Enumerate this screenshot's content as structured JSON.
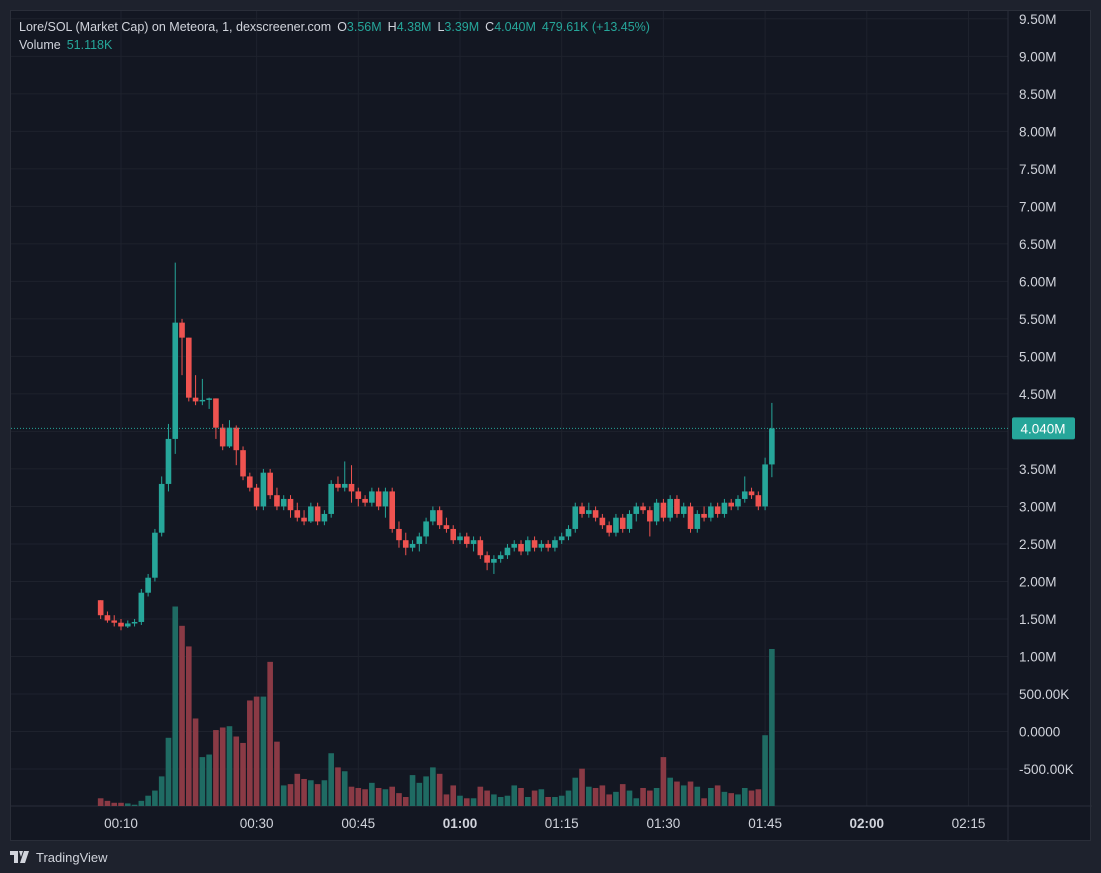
{
  "legend": {
    "symbol": "Lore/SOL (Market Cap) on Meteora, 1, dexscreener.com",
    "o_label": "O",
    "o_value": "3.56M",
    "h_label": "H",
    "h_value": "4.38M",
    "l_label": "L",
    "l_value": "3.39M",
    "c_label": "C",
    "c_value": "4.040M",
    "change": "479.61K (+13.45%)",
    "volume_label": "Volume",
    "volume_value": "51.118K"
  },
  "footer": {
    "brand": "TradingView"
  },
  "colors": {
    "up": "#26a69a",
    "down": "#ef5350",
    "up_vol": "#1f6b63",
    "down_vol": "#8a3a45",
    "background": "#131722",
    "grid": "#1e222d",
    "text": "#d1d4dc"
  },
  "chart_data": {
    "type": "candlestick",
    "price_axis": {
      "min": -1000000,
      "max": 9500000,
      "ticks": [
        9500000,
        9000000,
        8500000,
        8000000,
        7500000,
        7000000,
        6500000,
        6000000,
        5500000,
        5000000,
        4500000,
        4000000,
        3500000,
        3000000,
        2500000,
        2000000,
        1500000,
        1000000,
        500000,
        0,
        -500000
      ],
      "tick_labels": [
        "9.50M",
        "9.00M",
        "8.50M",
        "8.00M",
        "7.50M",
        "7.00M",
        "6.50M",
        "6.00M",
        "5.50M",
        "5.00M",
        "4.50M",
        "",
        "3.50M",
        "3.00M",
        "2.50M",
        "2.00M",
        "1.50M",
        "1.00M",
        "500.00K",
        "0.0000",
        "-500.00K"
      ]
    },
    "time_axis": {
      "labels": [
        {
          "minute": 10,
          "text": "00:10",
          "bold": false
        },
        {
          "minute": 30,
          "text": "00:30",
          "bold": false
        },
        {
          "minute": 45,
          "text": "00:45",
          "bold": false
        },
        {
          "minute": 60,
          "text": "01:00",
          "bold": true
        },
        {
          "minute": 75,
          "text": "01:15",
          "bold": false
        },
        {
          "minute": 90,
          "text": "01:30",
          "bold": false
        },
        {
          "minute": 105,
          "text": "01:45",
          "bold": false
        },
        {
          "minute": 120,
          "text": "02:00",
          "bold": true
        },
        {
          "minute": 135,
          "text": "02:15",
          "bold": false
        }
      ]
    },
    "last_price": {
      "value": 4040000,
      "label": "4.040M"
    },
    "start_minute": 7,
    "candles": [
      [
        1.75,
        1.75,
        1.5,
        1.55,
        60000
      ],
      [
        1.55,
        1.6,
        1.45,
        1.48,
        40000
      ],
      [
        1.48,
        1.55,
        1.4,
        1.45,
        25000
      ],
      [
        1.45,
        1.5,
        1.35,
        1.4,
        25000
      ],
      [
        1.4,
        1.48,
        1.38,
        1.44,
        20000
      ],
      [
        1.44,
        1.5,
        1.4,
        1.46,
        10000
      ],
      [
        1.46,
        1.9,
        1.42,
        1.85,
        40000
      ],
      [
        1.85,
        2.1,
        1.8,
        2.05,
        80000
      ],
      [
        2.05,
        2.7,
        2.0,
        2.65,
        120000
      ],
      [
        2.65,
        3.4,
        2.6,
        3.3,
        230000
      ],
      [
        3.3,
        4.1,
        3.2,
        3.9,
        530000
      ],
      [
        3.9,
        6.25,
        3.7,
        5.45,
        1550000
      ],
      [
        5.45,
        5.5,
        4.75,
        5.25,
        1400000
      ],
      [
        5.25,
        5.25,
        4.4,
        4.45,
        1240000
      ],
      [
        4.45,
        4.75,
        4.35,
        4.4,
        680000
      ],
      [
        4.4,
        4.7,
        4.35,
        4.42,
        380000
      ],
      [
        4.42,
        4.45,
        4.3,
        4.44,
        400000
      ],
      [
        4.44,
        4.44,
        3.9,
        4.05,
        590000
      ],
      [
        4.05,
        4.1,
        3.75,
        3.8,
        610000
      ],
      [
        3.8,
        4.15,
        3.78,
        4.05,
        620000
      ],
      [
        4.05,
        4.08,
        3.55,
        3.75,
        540000
      ],
      [
        3.75,
        3.8,
        3.35,
        3.4,
        490000
      ],
      [
        3.4,
        3.45,
        3.2,
        3.25,
        820000
      ],
      [
        3.25,
        3.3,
        2.95,
        3.0,
        850000
      ],
      [
        3.0,
        3.5,
        2.95,
        3.45,
        850000
      ],
      [
        3.45,
        3.5,
        3.1,
        3.15,
        1120000
      ],
      [
        3.15,
        3.25,
        2.95,
        3.0,
        500000
      ],
      [
        3.0,
        3.15,
        2.95,
        3.1,
        160000
      ],
      [
        3.1,
        3.15,
        2.85,
        2.95,
        170000
      ],
      [
        2.95,
        3.05,
        2.8,
        2.85,
        250000
      ],
      [
        2.85,
        2.95,
        2.75,
        2.8,
        210000
      ],
      [
        2.8,
        3.05,
        2.78,
        3.0,
        200000
      ],
      [
        3.0,
        3.05,
        2.75,
        2.8,
        170000
      ],
      [
        2.8,
        2.95,
        2.75,
        2.9,
        200000
      ],
      [
        2.9,
        3.35,
        2.85,
        3.3,
        410000
      ],
      [
        3.3,
        3.4,
        3.2,
        3.25,
        300000
      ],
      [
        3.25,
        3.6,
        3.2,
        3.3,
        270000
      ],
      [
        3.3,
        3.55,
        3.05,
        3.2,
        150000
      ],
      [
        3.2,
        3.25,
        3.0,
        3.1,
        140000
      ],
      [
        3.1,
        3.15,
        3.0,
        3.05,
        130000
      ],
      [
        3.05,
        3.25,
        3.0,
        3.2,
        180000
      ],
      [
        3.2,
        3.25,
        2.95,
        3.0,
        140000
      ],
      [
        3.0,
        3.25,
        2.85,
        3.2,
        130000
      ],
      [
        3.2,
        3.25,
        2.65,
        2.7,
        150000
      ],
      [
        2.7,
        2.8,
        2.45,
        2.55,
        100000
      ],
      [
        2.55,
        2.65,
        2.35,
        2.45,
        70000
      ],
      [
        2.45,
        2.55,
        2.4,
        2.5,
        240000
      ],
      [
        2.5,
        2.65,
        2.4,
        2.6,
        180000
      ],
      [
        2.6,
        2.85,
        2.5,
        2.8,
        230000
      ],
      [
        2.8,
        3.0,
        2.75,
        2.95,
        300000
      ],
      [
        2.95,
        3.0,
        2.7,
        2.75,
        250000
      ],
      [
        2.75,
        2.85,
        2.65,
        2.7,
        90000
      ],
      [
        2.7,
        2.75,
        2.5,
        2.55,
        160000
      ],
      [
        2.55,
        2.65,
        2.5,
        2.6,
        80000
      ],
      [
        2.6,
        2.65,
        2.45,
        2.5,
        60000
      ],
      [
        2.5,
        2.6,
        2.4,
        2.55,
        60000
      ],
      [
        2.55,
        2.6,
        2.3,
        2.35,
        150000
      ],
      [
        2.35,
        2.4,
        2.15,
        2.25,
        120000
      ],
      [
        2.25,
        2.35,
        2.1,
        2.3,
        90000
      ],
      [
        2.3,
        2.4,
        2.25,
        2.35,
        70000
      ],
      [
        2.35,
        2.5,
        2.3,
        2.45,
        80000
      ],
      [
        2.45,
        2.55,
        2.4,
        2.5,
        160000
      ],
      [
        2.5,
        2.55,
        2.35,
        2.4,
        140000
      ],
      [
        2.4,
        2.6,
        2.35,
        2.55,
        70000
      ],
      [
        2.55,
        2.6,
        2.4,
        2.45,
        120000
      ],
      [
        2.45,
        2.55,
        2.4,
        2.5,
        130000
      ],
      [
        2.5,
        2.55,
        2.4,
        2.45,
        70000
      ],
      [
        2.45,
        2.6,
        2.4,
        2.55,
        70000
      ],
      [
        2.55,
        2.65,
        2.5,
        2.6,
        80000
      ],
      [
        2.6,
        2.75,
        2.55,
        2.7,
        120000
      ],
      [
        2.7,
        3.05,
        2.65,
        3.0,
        220000
      ],
      [
        3.0,
        3.05,
        2.85,
        2.9,
        290000
      ],
      [
        2.9,
        3.05,
        2.85,
        2.95,
        150000
      ],
      [
        2.95,
        3.0,
        2.8,
        2.85,
        140000
      ],
      [
        2.85,
        2.9,
        2.7,
        2.75,
        160000
      ],
      [
        2.75,
        2.8,
        2.6,
        2.65,
        90000
      ],
      [
        2.65,
        2.9,
        2.6,
        2.85,
        110000
      ],
      [
        2.85,
        2.9,
        2.65,
        2.7,
        170000
      ],
      [
        2.7,
        2.95,
        2.65,
        2.9,
        120000
      ],
      [
        2.9,
        3.05,
        2.8,
        3.0,
        60000
      ],
      [
        3.0,
        3.05,
        2.9,
        2.95,
        140000
      ],
      [
        2.95,
        3.0,
        2.6,
        2.8,
        120000
      ],
      [
        2.8,
        3.1,
        2.75,
        3.05,
        140000
      ],
      [
        3.05,
        3.1,
        2.8,
        2.85,
        380000
      ],
      [
        2.85,
        3.15,
        2.8,
        3.1,
        220000
      ],
      [
        3.1,
        3.15,
        2.85,
        2.9,
        190000
      ],
      [
        2.9,
        3.05,
        2.85,
        3.0,
        160000
      ],
      [
        3.0,
        3.05,
        2.65,
        2.7,
        190000
      ],
      [
        2.7,
        2.95,
        2.65,
        2.9,
        150000
      ],
      [
        2.9,
        3.0,
        2.8,
        2.85,
        60000
      ],
      [
        2.85,
        3.05,
        2.8,
        3.0,
        140000
      ],
      [
        3.0,
        3.05,
        2.85,
        2.9,
        160000
      ],
      [
        2.9,
        3.1,
        2.85,
        3.05,
        110000
      ],
      [
        3.05,
        3.1,
        2.95,
        3.0,
        100000
      ],
      [
        3.0,
        3.15,
        2.95,
        3.1,
        90000
      ],
      [
        3.1,
        3.4,
        3.05,
        3.2,
        140000
      ],
      [
        3.2,
        3.25,
        3.1,
        3.15,
        120000
      ],
      [
        3.15,
        3.2,
        2.95,
        3.0,
        130000
      ],
      [
        3.0,
        3.65,
        2.95,
        3.56,
        550000
      ],
      [
        3.56,
        4.38,
        3.39,
        4.04,
        1220000
      ]
    ]
  }
}
